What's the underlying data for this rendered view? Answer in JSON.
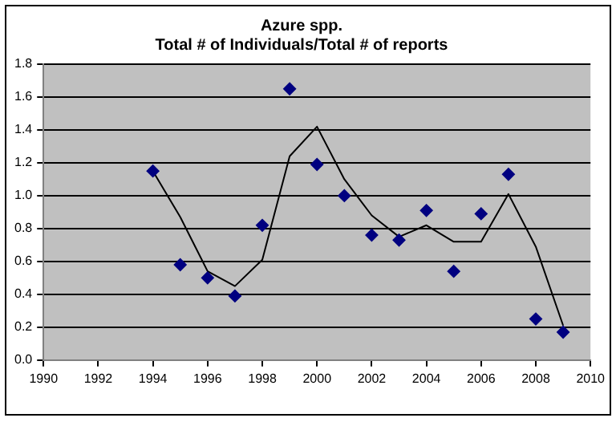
{
  "chart_data": {
    "type": "scatter",
    "title": "Azure spp.",
    "subtitle": "Total # of Individuals/Total # of reports",
    "x": [
      1994,
      1995,
      1996,
      1997,
      1998,
      1999,
      2000,
      2001,
      2002,
      2003,
      2004,
      2005,
      2006,
      2007,
      2008,
      2009
    ],
    "series": [
      {
        "type": "scatter",
        "color": "#000080",
        "marker": "diamond",
        "values": [
          1.15,
          0.58,
          0.5,
          0.39,
          0.82,
          1.65,
          1.19,
          1.0,
          0.76,
          0.73,
          0.91,
          0.54,
          0.89,
          1.13,
          0.25,
          0.17
        ]
      },
      {
        "type": "line",
        "color": "#000000",
        "marker": "none",
        "values": [
          1.15,
          0.87,
          0.54,
          0.45,
          0.61,
          1.24,
          1.42,
          1.1,
          0.88,
          0.75,
          0.82,
          0.72,
          0.72,
          1.01,
          0.69,
          0.21
        ]
      }
    ],
    "xlim": [
      1990,
      2010
    ],
    "xticks": [
      1990,
      1992,
      1994,
      1996,
      1998,
      2000,
      2002,
      2004,
      2006,
      2008,
      2010
    ],
    "ylim": [
      0,
      1.8
    ],
    "yticks": [
      {
        "value": 0,
        "label": "0.0"
      },
      {
        "value": 0.2,
        "label": "0.2"
      },
      {
        "value": 0.4,
        "label": "0.4"
      },
      {
        "value": 0.6,
        "label": "0.6"
      },
      {
        "value": 0.8,
        "label": "0.8"
      },
      {
        "value": 1,
        "label": "1.0"
      },
      {
        "value": 1.2,
        "label": "1.2"
      },
      {
        "value": 1.4,
        "label": "1.4"
      },
      {
        "value": 1.6,
        "label": "1.6"
      },
      {
        "value": 1.8,
        "label": "1.8"
      }
    ],
    "grid": "y",
    "legend": false
  }
}
